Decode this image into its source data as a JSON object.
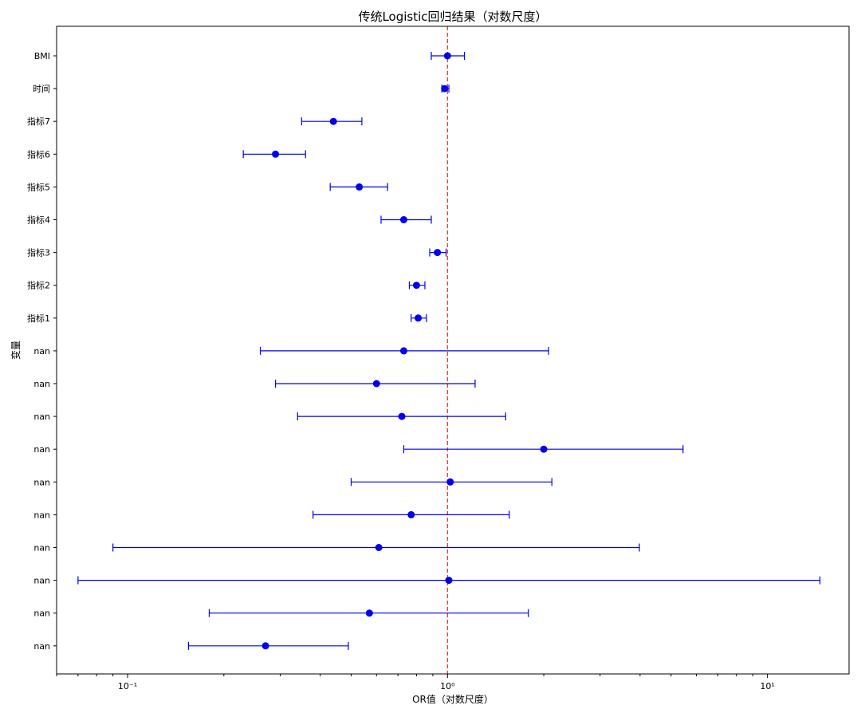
{
  "chart_data": {
    "type": "forest",
    "title": "传统Logistic回归结果（对数尺度）",
    "xlabel": "OR值（对数尺度）",
    "ylabel": "变量",
    "xscale": "log",
    "xlim": [
      0.06,
      18
    ],
    "reference_line": {
      "x": 1,
      "color": "#e0301e",
      "style": "dashed"
    },
    "marker_color": "#0000ee",
    "x_ticks": [
      {
        "value": 0.1,
        "label": "10⁻¹"
      },
      {
        "value": 1,
        "label": "10⁰"
      },
      {
        "value": 10,
        "label": "10¹"
      }
    ],
    "rows": [
      {
        "label": "BMI",
        "or": 1.0,
        "lo": 0.89,
        "hi": 1.13
      },
      {
        "label": "时间",
        "or": 0.98,
        "lo": 0.96,
        "hi": 1.01
      },
      {
        "label": "指标7",
        "or": 0.44,
        "lo": 0.35,
        "hi": 0.54
      },
      {
        "label": "指标6",
        "or": 0.29,
        "lo": 0.23,
        "hi": 0.36
      },
      {
        "label": "指标5",
        "or": 0.53,
        "lo": 0.43,
        "hi": 0.65
      },
      {
        "label": "指标4",
        "or": 0.73,
        "lo": 0.62,
        "hi": 0.89
      },
      {
        "label": "指标3",
        "or": 0.93,
        "lo": 0.88,
        "hi": 0.99
      },
      {
        "label": "指标2",
        "or": 0.8,
        "lo": 0.76,
        "hi": 0.85
      },
      {
        "label": "指标1",
        "or": 0.81,
        "lo": 0.77,
        "hi": 0.86
      },
      {
        "label": "nan",
        "or": 0.73,
        "lo": 0.26,
        "hi": 2.07
      },
      {
        "label": "nan",
        "or": 0.6,
        "lo": 0.29,
        "hi": 1.22
      },
      {
        "label": "nan",
        "or": 0.72,
        "lo": 0.34,
        "hi": 1.52
      },
      {
        "label": "nan",
        "or": 2.0,
        "lo": 0.73,
        "hi": 5.45
      },
      {
        "label": "nan",
        "or": 1.02,
        "lo": 0.5,
        "hi": 2.12
      },
      {
        "label": "nan",
        "or": 0.77,
        "lo": 0.38,
        "hi": 1.56
      },
      {
        "label": "nan",
        "or": 0.61,
        "lo": 0.09,
        "hi": 3.98
      },
      {
        "label": "nan",
        "or": 1.01,
        "lo": 0.07,
        "hi": 14.6
      },
      {
        "label": "nan",
        "or": 0.57,
        "lo": 0.18,
        "hi": 1.79
      },
      {
        "label": "nan",
        "or": 0.27,
        "lo": 0.155,
        "hi": 0.49
      }
    ]
  }
}
